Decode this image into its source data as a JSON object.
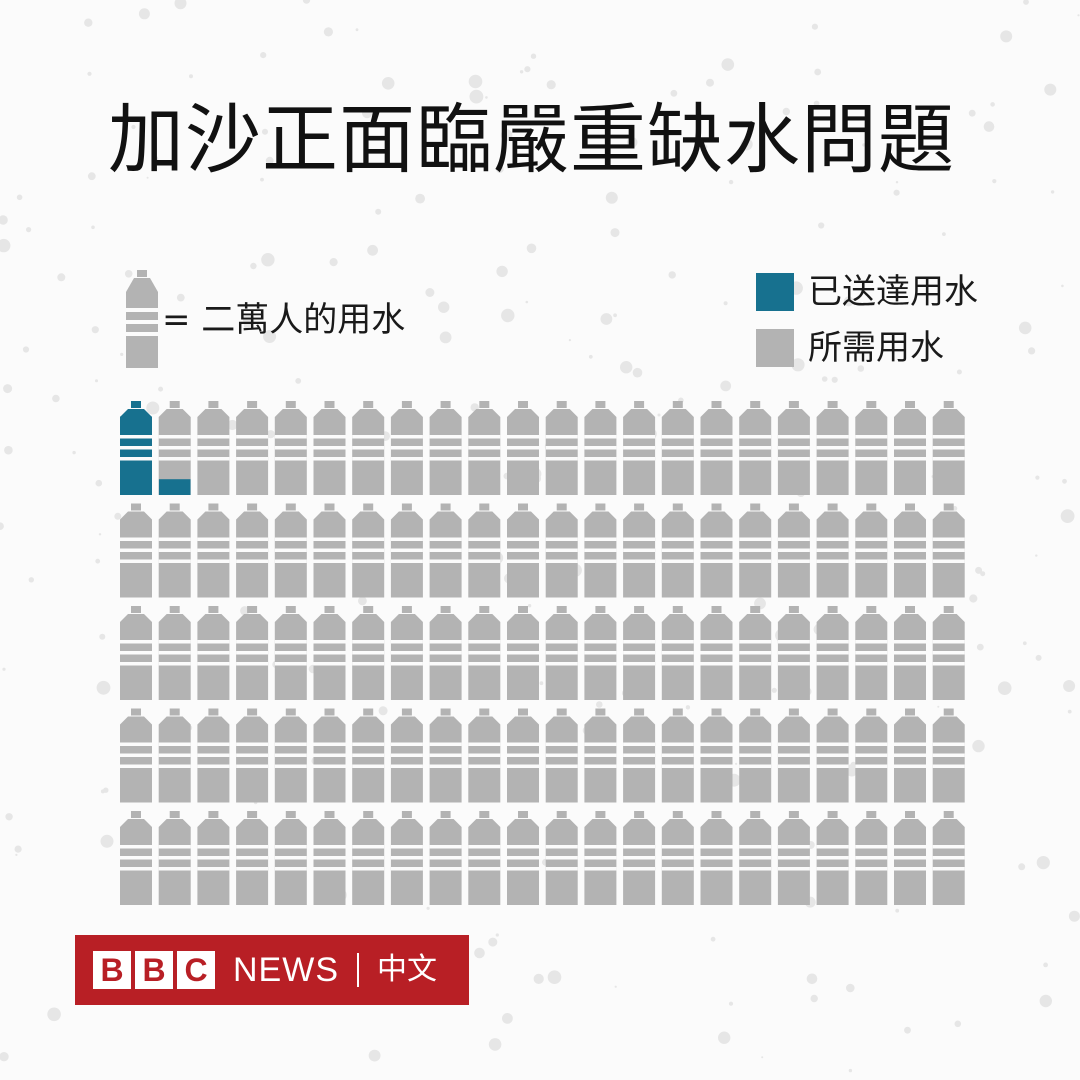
{
  "title": "加沙正面臨嚴重缺水問題",
  "unit_key": {
    "icon": "water-bottle-icon",
    "text": "= 二萬人的用水"
  },
  "legend": [
    {
      "label": "已送達用水",
      "color": "#17718f"
    },
    {
      "label": "所需用水",
      "color": "#b3b3b3"
    }
  ],
  "chart_data": {
    "type": "pictogram",
    "unit": "二萬人的用水",
    "total_units": 110,
    "rows": 5,
    "per_row": 22,
    "series": [
      {
        "name": "已送達用水",
        "value": 1.2,
        "color": "#17718f"
      },
      {
        "name": "所需用水",
        "value": 110,
        "color": "#b3b3b3"
      }
    ]
  },
  "logo": {
    "letters": [
      "B",
      "B",
      "C"
    ],
    "news": "NEWS",
    "chinese": "中文"
  }
}
